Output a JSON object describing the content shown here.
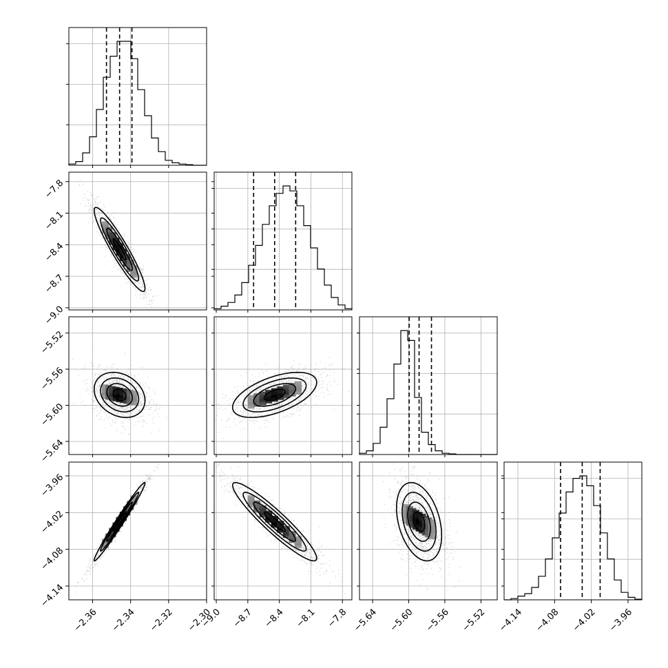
{
  "chart_data": {
    "type": "corner",
    "parameters": [
      {
        "ticks": [
          -2.36,
          -2.34,
          -2.32,
          -2.3
        ],
        "tick_labels": [
          "−2.36",
          "−2.34",
          "−2.32",
          "−2.30"
        ],
        "range": [
          -2.3725,
          -2.3
        ]
      },
      {
        "ticks": [
          -9.0,
          -8.7,
          -8.4,
          -8.1,
          -7.8
        ],
        "tick_labels": [
          "−9.0",
          "−8.7",
          "−8.4",
          "−8.1",
          "−7.8"
        ],
        "range": [
          -9.02,
          -7.71
        ]
      },
      {
        "ticks": [
          -5.64,
          -5.6,
          -5.56,
          -5.52
        ],
        "tick_labels": [
          "−5.64",
          "−5.60",
          "−5.56",
          "−5.52"
        ],
        "range": [
          -5.6545,
          -5.502
        ]
      },
      {
        "ticks": [
          -4.14,
          -4.08,
          -4.02,
          -3.96
        ],
        "tick_labels": [
          "−4.14",
          "−4.08",
          "−4.02",
          "−3.96"
        ],
        "range": [
          -4.1625,
          -3.9375
        ]
      }
    ],
    "quantiles": [
      [
        -2.3527,
        -2.3458,
        -2.3393
      ],
      [
        -8.645,
        -8.445,
        -8.245
      ],
      [
        -5.5995,
        -5.5885,
        -5.5748
      ],
      [
        -4.0703,
        -4.0349,
        -4.0056
      ]
    ],
    "histograms": [
      [
        0.01,
        0.03,
        0.1,
        0.23,
        0.45,
        0.71,
        0.88,
        1.0,
        1.0,
        0.86,
        0.61,
        0.4,
        0.22,
        0.11,
        0.04,
        0.02,
        0.01,
        0.005,
        0.0,
        0.0
      ],
      [
        0.01,
        0.03,
        0.06,
        0.12,
        0.22,
        0.36,
        0.52,
        0.69,
        0.84,
        0.94,
        1.0,
        0.96,
        0.84,
        0.68,
        0.5,
        0.33,
        0.2,
        0.1,
        0.04,
        0.01
      ],
      [
        0.01,
        0.03,
        0.09,
        0.22,
        0.45,
        0.73,
        1.0,
        0.92,
        0.46,
        0.18,
        0.08,
        0.03,
        0.01,
        0.005,
        0.0,
        0.0,
        0.0,
        0.0,
        0.0,
        0.0
      ],
      [
        0.0,
        0.01,
        0.03,
        0.05,
        0.1,
        0.19,
        0.33,
        0.5,
        0.7,
        0.87,
        0.98,
        1.0,
        0.92,
        0.76,
        0.54,
        0.33,
        0.16,
        0.06,
        0.02,
        0.005
      ]
    ],
    "pairs": [
      {
        "row": 1,
        "col": 0,
        "mean": [
          -2.3458,
          -8.445
        ],
        "std": [
          0.0067,
          0.2
        ],
        "rho": -0.93
      },
      {
        "row": 2,
        "col": 0,
        "mean": [
          -2.3458,
          -5.5885
        ],
        "std": [
          0.0067,
          0.0125
        ],
        "rho": -0.25
      },
      {
        "row": 2,
        "col": 1,
        "mean": [
          -8.445,
          -5.5885
        ],
        "std": [
          0.2,
          0.0125
        ],
        "rho": 0.55
      },
      {
        "row": 3,
        "col": 0,
        "mean": [
          -2.3458,
          -4.0349
        ],
        "std": [
          0.0067,
          0.032
        ],
        "rho": 0.985
      },
      {
        "row": 3,
        "col": 1,
        "mean": [
          -8.445,
          -4.0349
        ],
        "std": [
          0.2,
          0.032
        ],
        "rho": -0.93
      },
      {
        "row": 3,
        "col": 2,
        "mean": [
          -5.5885,
          -4.0349
        ],
        "std": [
          0.0125,
          0.032
        ],
        "rho": -0.35
      }
    ],
    "grid": true,
    "colors": {
      "line": "#000000",
      "scatter": "#9a9a9a",
      "grid": "#b0b0b0"
    }
  }
}
